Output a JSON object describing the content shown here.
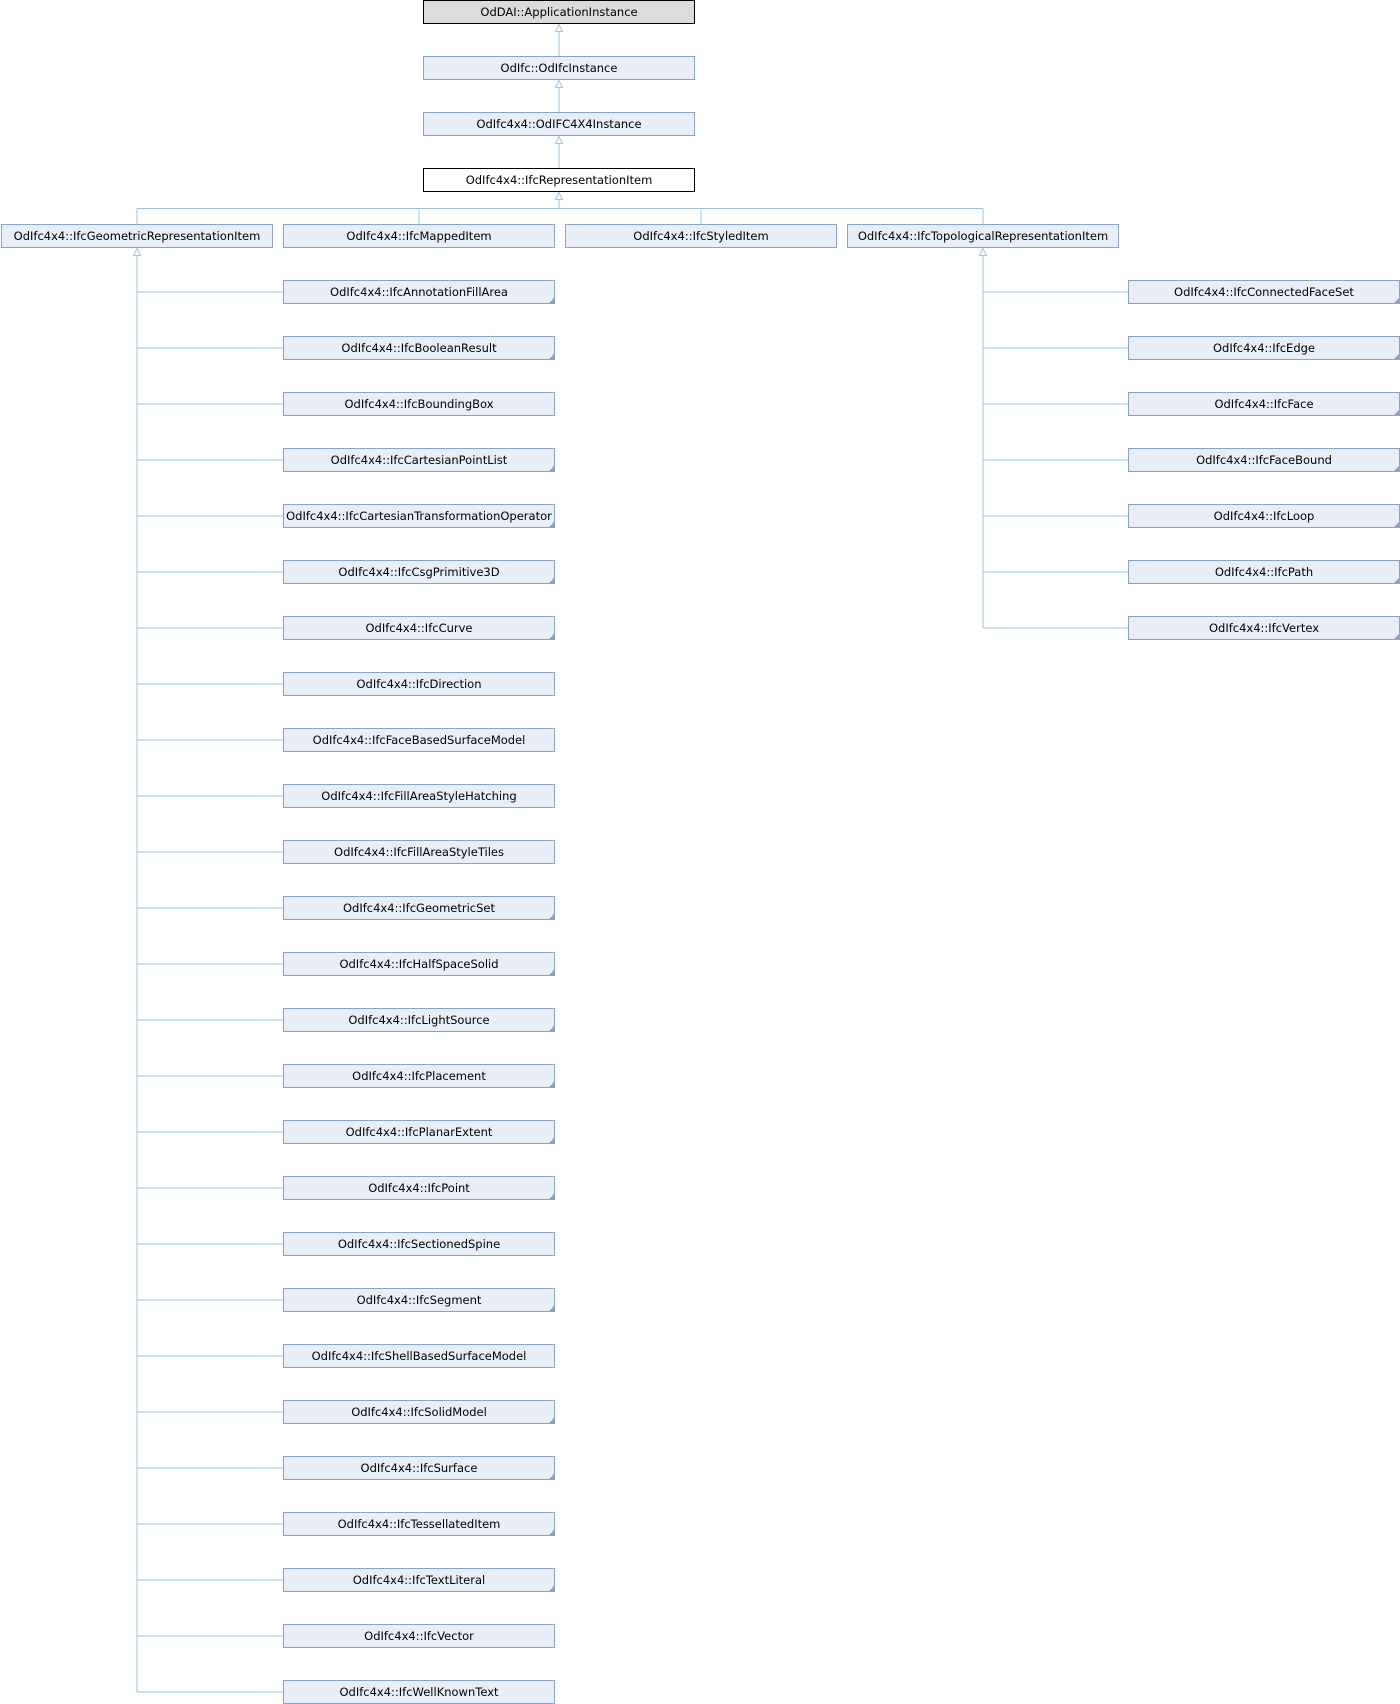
{
  "colors": {
    "node_fill": "#e8edf7",
    "node_border": "#8aa2c8",
    "root_fill": "#dcdcdc",
    "root_border": "#000000",
    "focus_fill": "#ffffff",
    "focus_border": "#000000",
    "edge": "#9cc4e4",
    "corner_marker": "#8aa2c8"
  },
  "diagram": {
    "root": "OdDAI::ApplicationInstance",
    "chain": [
      "OdIfc::OdIfcInstance",
      "OdIfc4x4::OdIFC4X4Instance"
    ],
    "focus": "OdIfc4x4::IfcRepresentationItem",
    "children": [
      {
        "label": "OdIfc4x4::IfcGeometricRepresentationItem",
        "subclasses": [
          {
            "label": "OdIfc4x4::IfcAnnotationFillArea",
            "has_more": true
          },
          {
            "label": "OdIfc4x4::IfcBooleanResult",
            "has_more": true
          },
          {
            "label": "OdIfc4x4::IfcBoundingBox",
            "has_more": false
          },
          {
            "label": "OdIfc4x4::IfcCartesianPointList",
            "has_more": true
          },
          {
            "label": "OdIfc4x4::IfcCartesianTransformationOperator",
            "has_more": true
          },
          {
            "label": "OdIfc4x4::IfcCsgPrimitive3D",
            "has_more": true
          },
          {
            "label": "OdIfc4x4::IfcCurve",
            "has_more": true
          },
          {
            "label": "OdIfc4x4::IfcDirection",
            "has_more": false
          },
          {
            "label": "OdIfc4x4::IfcFaceBasedSurfaceModel",
            "has_more": false
          },
          {
            "label": "OdIfc4x4::IfcFillAreaStyleHatching",
            "has_more": false
          },
          {
            "label": "OdIfc4x4::IfcFillAreaStyleTiles",
            "has_more": false
          },
          {
            "label": "OdIfc4x4::IfcGeometricSet",
            "has_more": true
          },
          {
            "label": "OdIfc4x4::IfcHalfSpaceSolid",
            "has_more": true
          },
          {
            "label": "OdIfc4x4::IfcLightSource",
            "has_more": true
          },
          {
            "label": "OdIfc4x4::IfcPlacement",
            "has_more": true
          },
          {
            "label": "OdIfc4x4::IfcPlanarExtent",
            "has_more": true
          },
          {
            "label": "OdIfc4x4::IfcPoint",
            "has_more": true
          },
          {
            "label": "OdIfc4x4::IfcSectionedSpine",
            "has_more": false
          },
          {
            "label": "OdIfc4x4::IfcSegment",
            "has_more": true
          },
          {
            "label": "OdIfc4x4::IfcShellBasedSurfaceModel",
            "has_more": false
          },
          {
            "label": "OdIfc4x4::IfcSolidModel",
            "has_more": true
          },
          {
            "label": "OdIfc4x4::IfcSurface",
            "has_more": true
          },
          {
            "label": "OdIfc4x4::IfcTessellatedItem",
            "has_more": true
          },
          {
            "label": "OdIfc4x4::IfcTextLiteral",
            "has_more": true
          },
          {
            "label": "OdIfc4x4::IfcVector",
            "has_more": false
          },
          {
            "label": "OdIfc4x4::IfcWellKnownText",
            "has_more": false
          }
        ]
      },
      {
        "label": "OdIfc4x4::IfcMappedItem",
        "subclasses": []
      },
      {
        "label": "OdIfc4x4::IfcStyledItem",
        "subclasses": []
      },
      {
        "label": "OdIfc4x4::IfcTopologicalRepresentationItem",
        "subclasses": [
          {
            "label": "OdIfc4x4::IfcConnectedFaceSet",
            "has_more": true
          },
          {
            "label": "OdIfc4x4::IfcEdge",
            "has_more": true
          },
          {
            "label": "OdIfc4x4::IfcFace",
            "has_more": true
          },
          {
            "label": "OdIfc4x4::IfcFaceBound",
            "has_more": true
          },
          {
            "label": "OdIfc4x4::IfcLoop",
            "has_more": true
          },
          {
            "label": "OdIfc4x4::IfcPath",
            "has_more": true
          },
          {
            "label": "OdIfc4x4::IfcVertex",
            "has_more": true
          }
        ]
      }
    ]
  }
}
